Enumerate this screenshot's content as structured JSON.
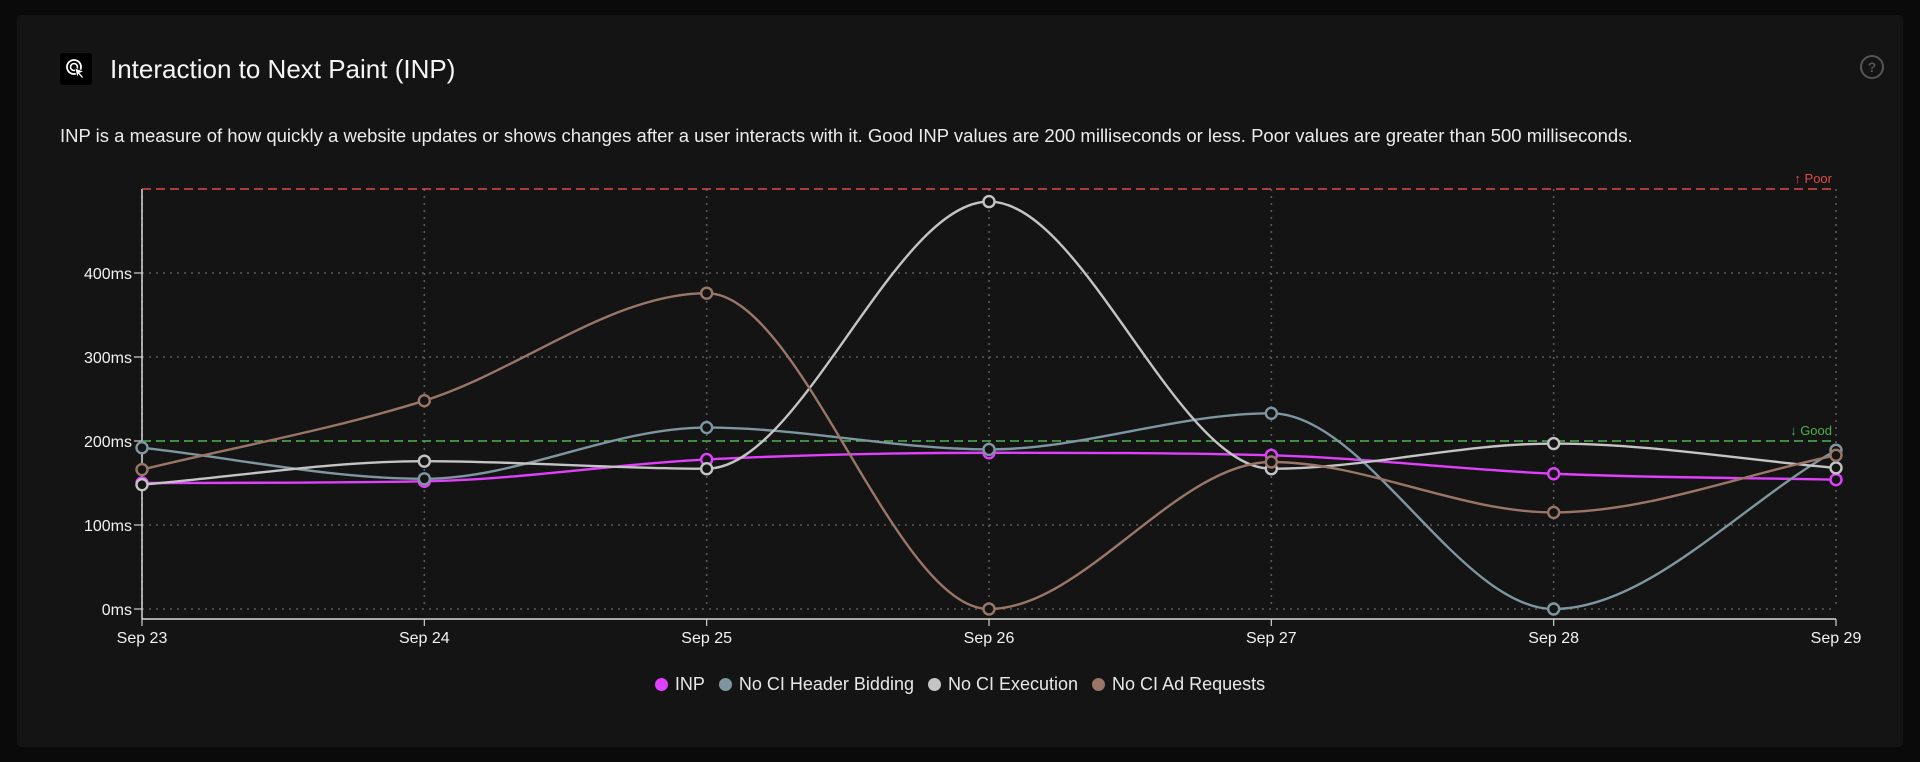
{
  "header": {
    "title": "Interaction to Next Paint (INP)",
    "icon": "cursor-click-icon",
    "help_icon": "help-circle-icon"
  },
  "description": "INP is a measure of how quickly a website updates or shows changes after a user interacts with it. Good INP values are 200 milliseconds or less. Poor values are greater than 500 milliseconds.",
  "chart_data": {
    "type": "line",
    "x": [
      "Sep 23",
      "Sep 24",
      "Sep 25",
      "Sep 26",
      "Sep 27",
      "Sep 28",
      "Sep 29"
    ],
    "yticks": [
      0,
      100,
      200,
      300,
      400
    ],
    "ytick_labels": [
      "0ms",
      "100ms",
      "200ms",
      "300ms",
      "400ms"
    ],
    "ylim": [
      0,
      500
    ],
    "grid": true,
    "legend_position": "bottom",
    "thresholds": [
      {
        "label": "↑ Poor",
        "value": 500,
        "color": "#e04a4a"
      },
      {
        "label": "↓ Good",
        "value": 200,
        "color": "#4caf50"
      }
    ],
    "series": [
      {
        "name": "INP",
        "color": "#e040fb",
        "values": [
          150,
          152,
          178,
          186,
          183,
          161,
          154
        ]
      },
      {
        "name": "No CI Header Bidding",
        "color": "#7e96a0",
        "values": [
          192,
          155,
          216,
          190,
          233,
          0,
          189
        ]
      },
      {
        "name": "No CI Execution",
        "color": "#c4c4c4",
        "values": [
          148,
          176,
          167,
          485,
          167,
          197,
          168
        ]
      },
      {
        "name": "No CI Ad Requests",
        "color": "#9a7668",
        "values": [
          166,
          248,
          376,
          0,
          175,
          115,
          183
        ]
      }
    ]
  }
}
